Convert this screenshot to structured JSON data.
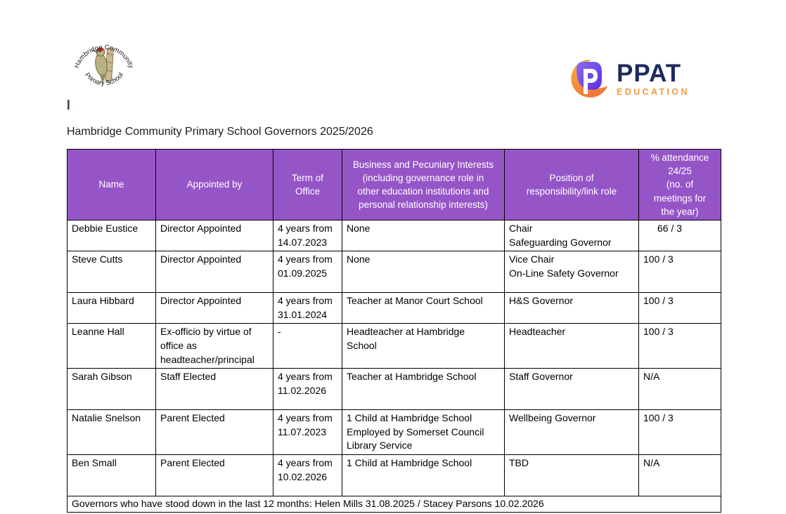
{
  "page": {
    "school_logo": {
      "top_arc": "Hambridge Community",
      "bottom_arc": "Primary School"
    },
    "ppat_logo": {
      "name": "PPAT",
      "subtitle": "EDUCATION",
      "navy": "#1e2a5c",
      "orange": "#f09a3e",
      "purple": "#6a3df0"
    },
    "title": "Hambridge Community Primary School Governors 2025/2026"
  },
  "table": {
    "header_bg": "#9655c7",
    "columns": [
      {
        "label": "Name"
      },
      {
        "label": "Appointed by"
      },
      {
        "label": "Term of\nOffice"
      },
      {
        "label": "Business and Pecuniary Interests\n(including governance role in\nother education institutions and\npersonal relationship interests)"
      },
      {
        "label": "Position of\nresponsibility/link role"
      },
      {
        "label": "% attendance\n24/25\n(no. of\nmeetings for\nthe year)"
      }
    ],
    "rows": [
      {
        "name": "Debbie Eustice",
        "appointed_by": "Director Appointed",
        "term": "4 years from\n14.07.2023",
        "interests": "None",
        "position": "Chair\nSafeguarding Governor",
        "attendance": "66 / 3"
      },
      {
        "name": "Steve Cutts",
        "appointed_by": "Director Appointed",
        "term": "4 years from\n01.09.2025",
        "interests": "None",
        "position": "Vice Chair\nOn-Line Safety Governor",
        "attendance": "100 / 3"
      },
      {
        "name": "Laura Hibbard",
        "appointed_by": "Director Appointed",
        "term": "4 years from\n31.01.2024",
        "interests": "Teacher at Manor Court School",
        "position": "H&S Governor",
        "attendance": "100 / 3"
      },
      {
        "name": "Leanne Hall",
        "appointed_by": "Ex-officio by virtue of\noffice as\nheadteacher/principal",
        "term": "-",
        "interests": "Headteacher at Hambridge\nSchool",
        "position": "Headteacher",
        "attendance": "100 / 3"
      },
      {
        "name": "Sarah Gibson",
        "appointed_by": "Staff Elected",
        "term": "4 years from\n11.02.2026",
        "interests": "Teacher at Hambridge School",
        "position": "Staff Governor",
        "attendance": "N/A"
      },
      {
        "name": "Natalie Snelson",
        "appointed_by": "Parent Elected",
        "term": "4 years from\n11.07.2023",
        "interests": "1 Child at Hambridge School\nEmployed by Somerset Council\nLibrary Service",
        "position": "Wellbeing Governor",
        "attendance": "100 / 3"
      },
      {
        "name": "Ben Small",
        "appointed_by": "Parent Elected",
        "term": "4 years from\n10.02.2026",
        "interests": "1 Child at Hambridge School",
        "position": "TBD",
        "attendance": "N/A"
      }
    ],
    "footer": "Governors who have stood down in the last 12 months: Helen Mills 31.08.2025 / Stacey Parsons 10.02.2026"
  }
}
